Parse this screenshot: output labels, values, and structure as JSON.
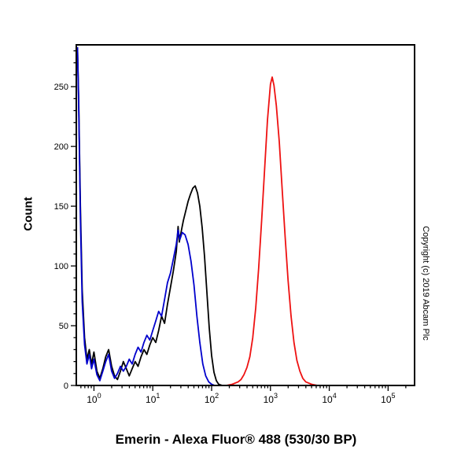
{
  "page": {
    "title": "Emerin - Alexa Fluor® 488 (530/30 BP)",
    "y_axis_label": "Count",
    "copyright": "Copyright (c) 2019 Abcam Plc"
  },
  "chart_data": {
    "type": "line",
    "title": "Emerin - Alexa Fluor® 488 (530/30 BP)",
    "xlabel": "",
    "ylabel": "Count",
    "x_scale": "log10",
    "xlim_log": [
      -0.3,
      5.45
    ],
    "ylim": [
      0,
      285
    ],
    "grid": false,
    "legend": null,
    "y_major_ticks": [
      0,
      50,
      100,
      150,
      200,
      250
    ],
    "y_minor_step": 10,
    "x_major_ticks": [
      {
        "log": 0,
        "label_base": "10",
        "label_exp": "0"
      },
      {
        "log": 1,
        "label_base": "10",
        "label_exp": "1"
      },
      {
        "log": 2,
        "label_base": "10",
        "label_exp": "2"
      },
      {
        "log": 3,
        "label_base": "10",
        "label_exp": "3"
      },
      {
        "log": 4,
        "label_base": "10",
        "label_exp": "4"
      },
      {
        "log": 5,
        "label_base": "10",
        "label_exp": "5"
      }
    ],
    "series": [
      {
        "name": "black-control-histogram",
        "color": "#000000",
        "points": [
          [
            -0.28,
            283
          ],
          [
            -0.26,
            240
          ],
          [
            -0.23,
            150
          ],
          [
            -0.2,
            80
          ],
          [
            -0.16,
            40
          ],
          [
            -0.12,
            22
          ],
          [
            -0.08,
            30
          ],
          [
            -0.04,
            18
          ],
          [
            0.0,
            28
          ],
          [
            0.05,
            12
          ],
          [
            0.1,
            6
          ],
          [
            0.15,
            14
          ],
          [
            0.2,
            24
          ],
          [
            0.25,
            30
          ],
          [
            0.3,
            16
          ],
          [
            0.35,
            8
          ],
          [
            0.4,
            5
          ],
          [
            0.45,
            12
          ],
          [
            0.5,
            20
          ],
          [
            0.55,
            14
          ],
          [
            0.6,
            8
          ],
          [
            0.65,
            14
          ],
          [
            0.7,
            20
          ],
          [
            0.75,
            16
          ],
          [
            0.8,
            24
          ],
          [
            0.85,
            30
          ],
          [
            0.9,
            26
          ],
          [
            0.95,
            34
          ],
          [
            1.0,
            40
          ],
          [
            1.05,
            36
          ],
          [
            1.1,
            46
          ],
          [
            1.15,
            58
          ],
          [
            1.2,
            52
          ],
          [
            1.25,
            68
          ],
          [
            1.3,
            82
          ],
          [
            1.35,
            96
          ],
          [
            1.4,
            112
          ],
          [
            1.43,
            133
          ],
          [
            1.45,
            120
          ],
          [
            1.48,
            128
          ],
          [
            1.52,
            138
          ],
          [
            1.56,
            146
          ],
          [
            1.6,
            154
          ],
          [
            1.64,
            160
          ],
          [
            1.68,
            165
          ],
          [
            1.72,
            167
          ],
          [
            1.76,
            161
          ],
          [
            1.8,
            150
          ],
          [
            1.84,
            132
          ],
          [
            1.88,
            108
          ],
          [
            1.92,
            78
          ],
          [
            1.96,
            48
          ],
          [
            2.0,
            25
          ],
          [
            2.04,
            11
          ],
          [
            2.08,
            4
          ],
          [
            2.12,
            1
          ],
          [
            2.18,
            0
          ],
          [
            5.45,
            0
          ]
        ]
      },
      {
        "name": "blue-control-histogram",
        "color": "#0000cc",
        "points": [
          [
            -0.28,
            283
          ],
          [
            -0.26,
            235
          ],
          [
            -0.23,
            140
          ],
          [
            -0.2,
            70
          ],
          [
            -0.16,
            34
          ],
          [
            -0.12,
            18
          ],
          [
            -0.08,
            26
          ],
          [
            -0.04,
            14
          ],
          [
            0.0,
            22
          ],
          [
            0.05,
            9
          ],
          [
            0.1,
            4
          ],
          [
            0.15,
            12
          ],
          [
            0.2,
            20
          ],
          [
            0.25,
            26
          ],
          [
            0.3,
            12
          ],
          [
            0.35,
            6
          ],
          [
            0.4,
            10
          ],
          [
            0.45,
            16
          ],
          [
            0.5,
            12
          ],
          [
            0.55,
            16
          ],
          [
            0.6,
            22
          ],
          [
            0.65,
            18
          ],
          [
            0.7,
            26
          ],
          [
            0.75,
            32
          ],
          [
            0.8,
            28
          ],
          [
            0.85,
            36
          ],
          [
            0.9,
            42
          ],
          [
            0.95,
            38
          ],
          [
            1.0,
            46
          ],
          [
            1.05,
            54
          ],
          [
            1.1,
            62
          ],
          [
            1.15,
            58
          ],
          [
            1.2,
            72
          ],
          [
            1.25,
            86
          ],
          [
            1.3,
            94
          ],
          [
            1.35,
            106
          ],
          [
            1.4,
            118
          ],
          [
            1.43,
            130
          ],
          [
            1.46,
            122
          ],
          [
            1.5,
            128
          ],
          [
            1.55,
            126
          ],
          [
            1.6,
            118
          ],
          [
            1.65,
            104
          ],
          [
            1.7,
            84
          ],
          [
            1.75,
            58
          ],
          [
            1.8,
            36
          ],
          [
            1.85,
            18
          ],
          [
            1.9,
            8
          ],
          [
            1.95,
            3
          ],
          [
            2.0,
            1
          ],
          [
            2.05,
            0
          ],
          [
            5.45,
            0
          ]
        ]
      },
      {
        "name": "red-emerin-af488-histogram",
        "color": "#ee1111",
        "points": [
          [
            -0.3,
            0
          ],
          [
            2.25,
            0
          ],
          [
            2.35,
            1
          ],
          [
            2.45,
            3
          ],
          [
            2.5,
            5
          ],
          [
            2.55,
            9
          ],
          [
            2.6,
            15
          ],
          [
            2.65,
            24
          ],
          [
            2.7,
            40
          ],
          [
            2.75,
            65
          ],
          [
            2.8,
            98
          ],
          [
            2.85,
            138
          ],
          [
            2.9,
            180
          ],
          [
            2.95,
            222
          ],
          [
            3.0,
            252
          ],
          [
            3.03,
            258
          ],
          [
            3.06,
            251
          ],
          [
            3.1,
            234
          ],
          [
            3.15,
            204
          ],
          [
            3.2,
            164
          ],
          [
            3.25,
            124
          ],
          [
            3.3,
            88
          ],
          [
            3.35,
            58
          ],
          [
            3.4,
            36
          ],
          [
            3.45,
            21
          ],
          [
            3.5,
            12
          ],
          [
            3.55,
            6
          ],
          [
            3.6,
            3
          ],
          [
            3.7,
            1
          ],
          [
            3.8,
            0
          ],
          [
            5.45,
            0
          ]
        ]
      }
    ]
  }
}
